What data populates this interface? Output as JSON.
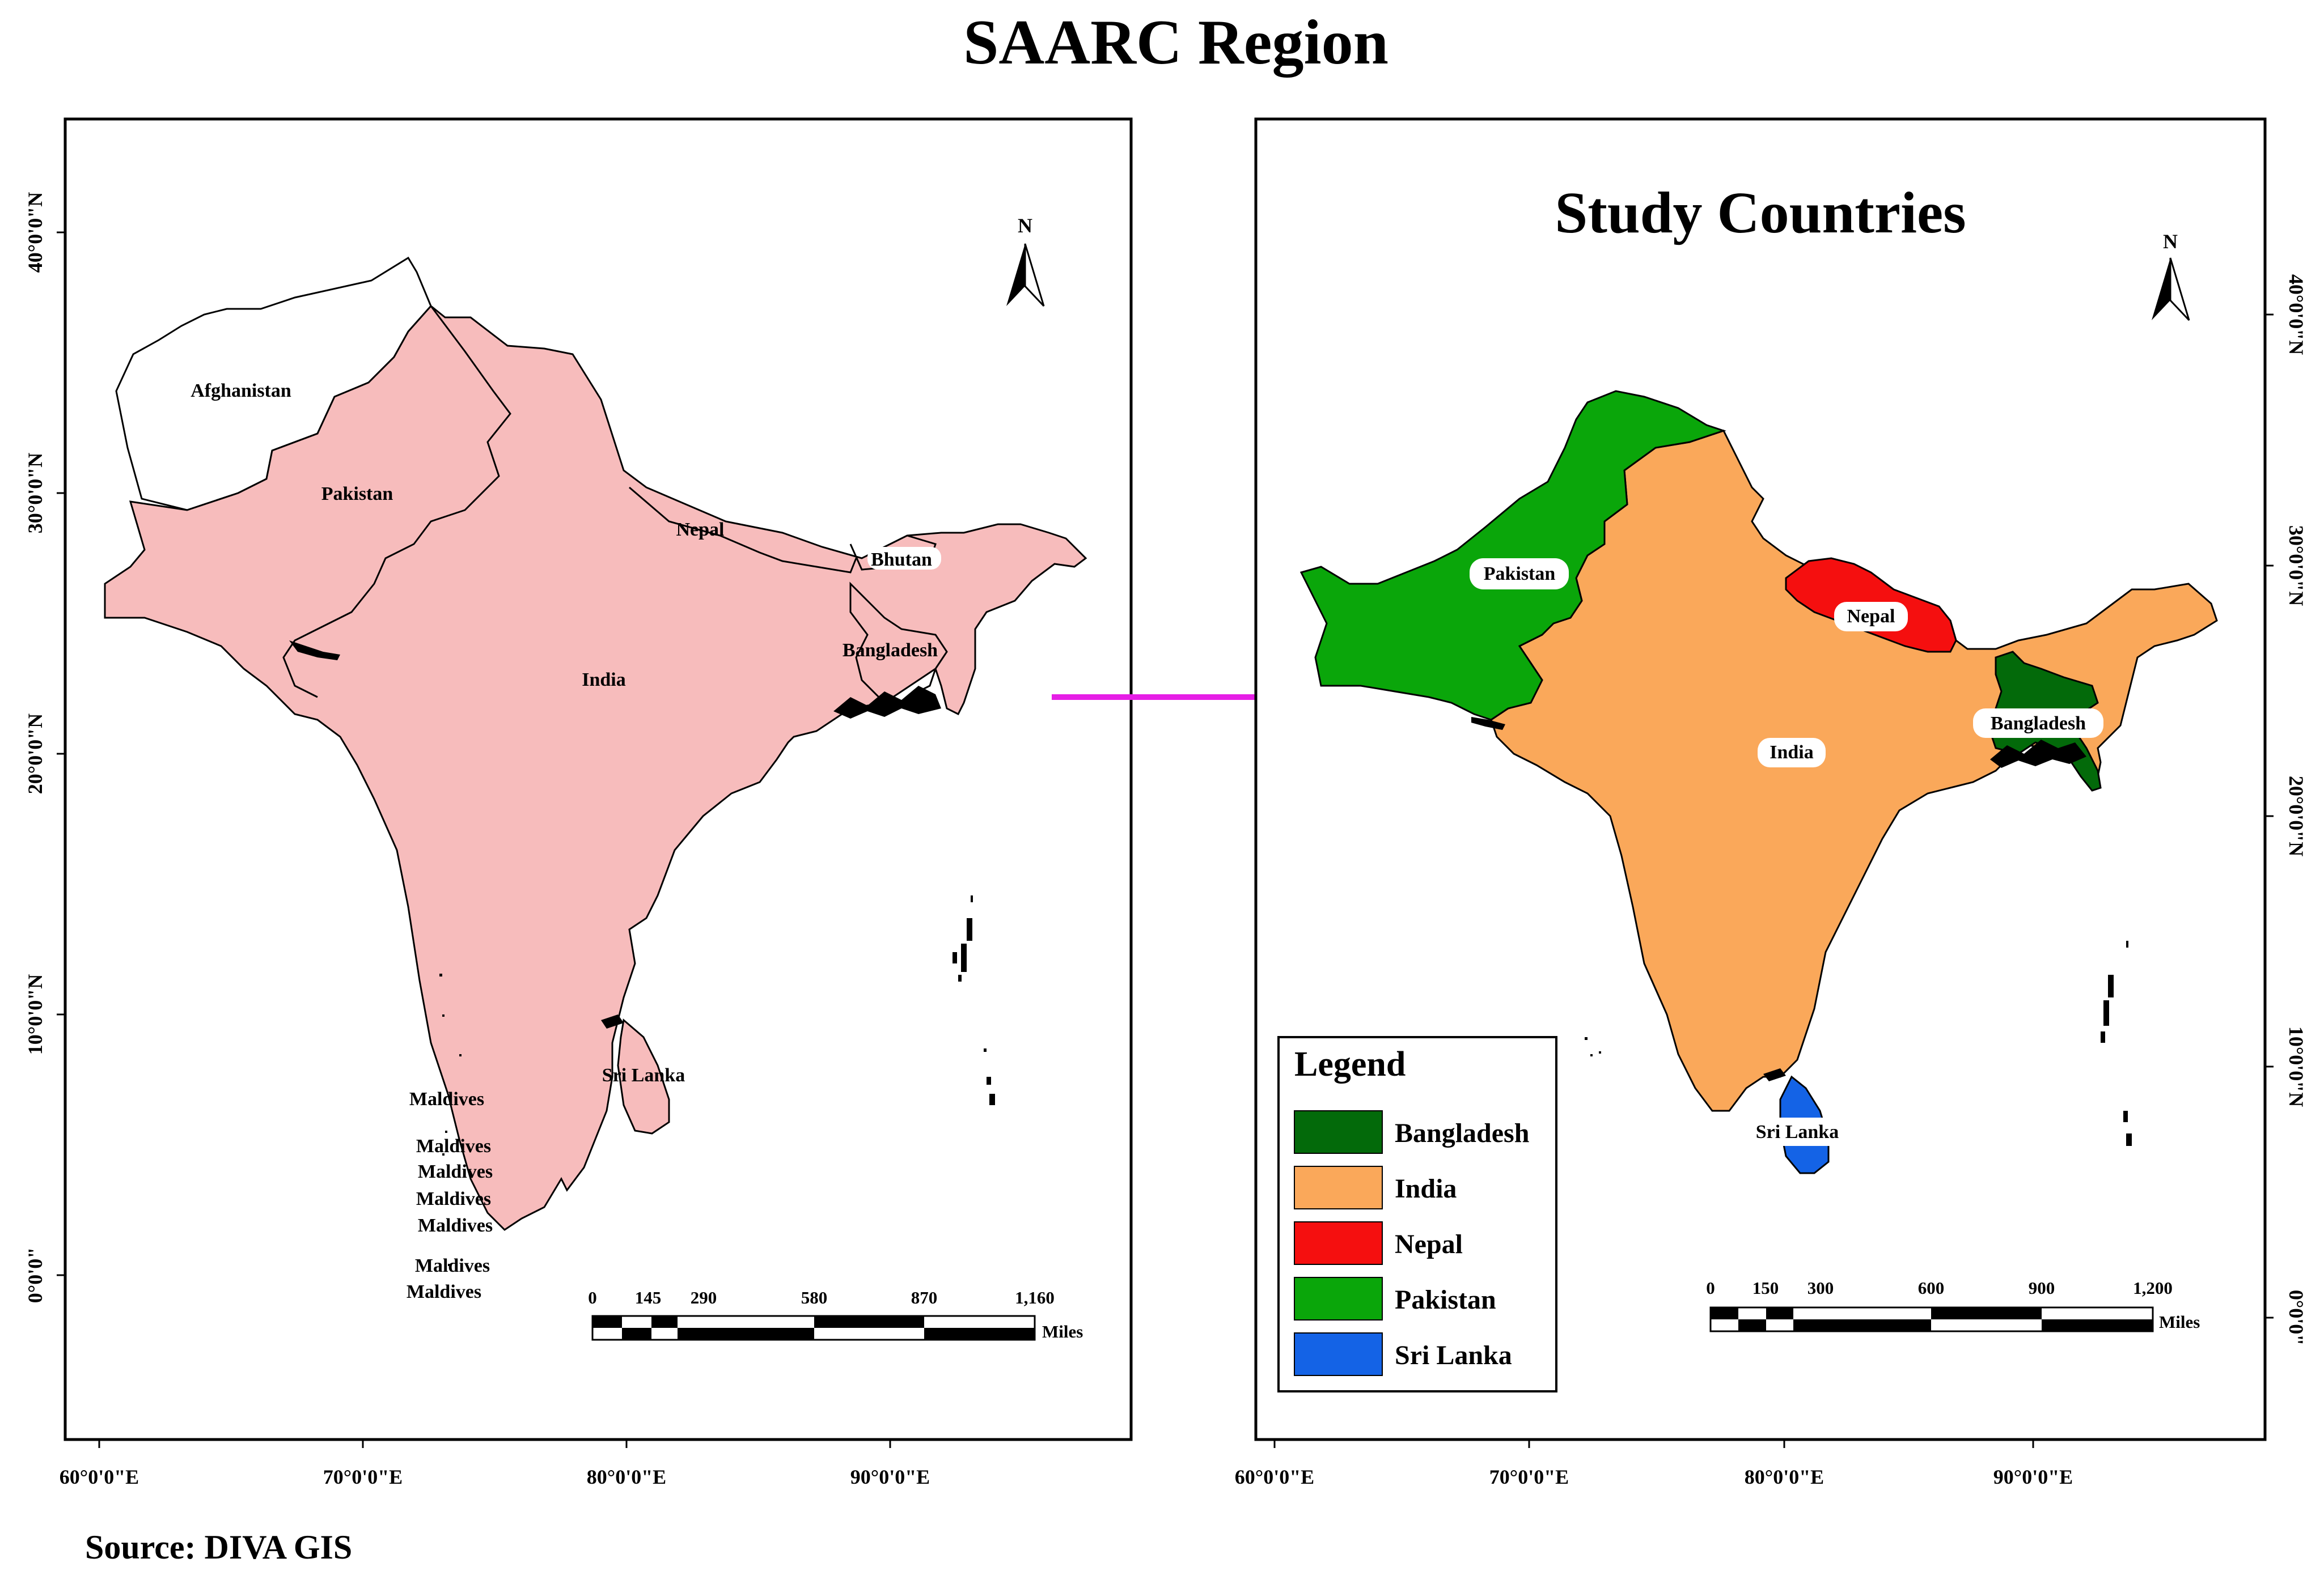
{
  "title": "SAARC Region",
  "source": "Source: DIVA GIS",
  "left_map": {
    "labels": {
      "afghanistan": "Afghanistan",
      "pakistan": "Pakistan",
      "india": "India",
      "nepal": "Nepal",
      "bhutan": "Bhutan",
      "bangladesh": "Bangladesh",
      "sri_lanka": "Sri Lanka",
      "maldives": [
        "Maldives",
        "Maldives",
        "Maldives",
        "Maldives",
        "Maldives",
        "Maldives",
        "Maldives"
      ]
    },
    "north": "N",
    "lat_ticks": [
      "40°0'0\"N",
      "30°0'0\"N",
      "20°0'0\"N",
      "10°0'0\"N",
      "0°0'0\""
    ],
    "lon_ticks": [
      "60°0'0\"E",
      "70°0'0\"E",
      "80°0'0\"E",
      "90°0'0\"E"
    ],
    "scale": {
      "ticks": [
        "0",
        "145",
        "290",
        "580",
        "870",
        "1,160"
      ],
      "unit": "Miles"
    }
  },
  "right_map": {
    "title": "Study Countries",
    "labels": {
      "pakistan": "Pakistan",
      "india": "India",
      "nepal": "Nepal",
      "bangladesh": "Bangladesh",
      "sri_lanka": "Sri Lanka"
    },
    "north": "N",
    "lat_ticks": [
      "40°0'0\"N",
      "30°0'0\"N",
      "20°0'0\"N",
      "10°0'0\"N",
      "0°0'0\""
    ],
    "lon_ticks": [
      "60°0'0\"E",
      "70°0'0\"E",
      "80°0'0\"E",
      "90°0'0\"E"
    ],
    "scale": {
      "ticks": [
        "0",
        "150",
        "300",
        "600",
        "900",
        "1,200"
      ],
      "unit": "Miles"
    },
    "legend": {
      "title": "Legend",
      "items": [
        {
          "label": "Bangladesh",
          "color": "#036a0a"
        },
        {
          "label": "India",
          "color": "#faa85a"
        },
        {
          "label": "Nepal",
          "color": "#f50f0f"
        },
        {
          "label": "Pakistan",
          "color": "#0aa60a"
        },
        {
          "label": "Sri Lanka",
          "color": "#1463e6"
        }
      ]
    }
  },
  "colors": {
    "left_fill": "#f7bcbc",
    "arrow": "#e61ee6",
    "bangladesh": "#036a0a",
    "india": "#faa85a",
    "nepal": "#f50f0f",
    "pakistan": "#0aa60a",
    "sri_lanka": "#1463e6"
  }
}
